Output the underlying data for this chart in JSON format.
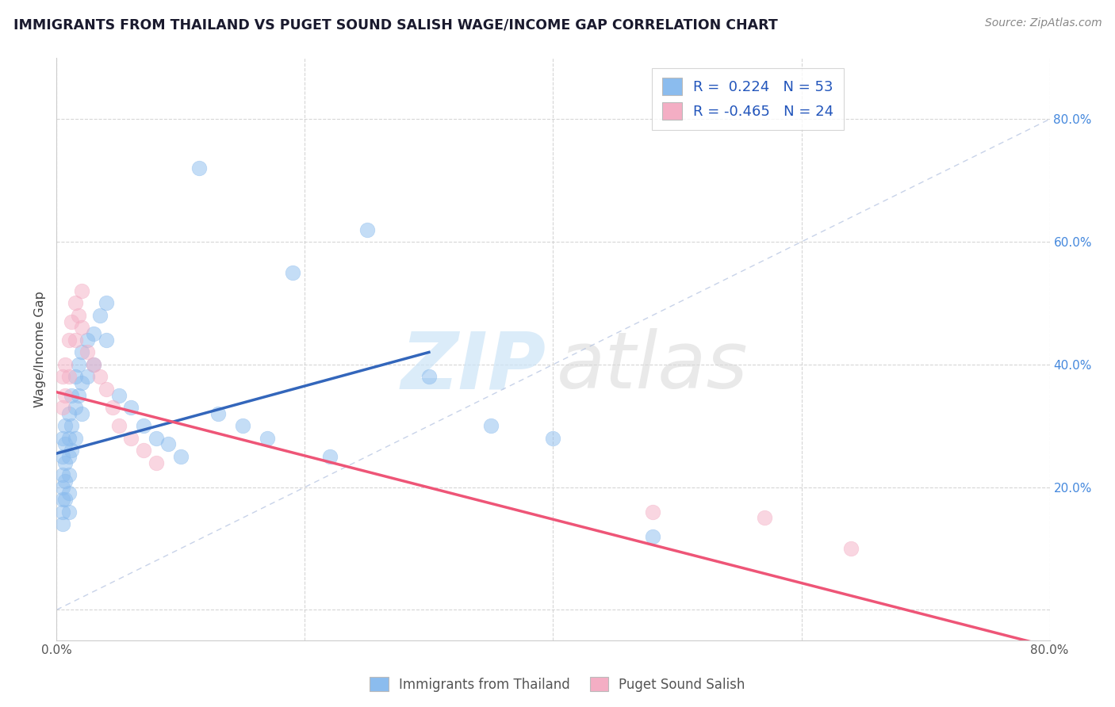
{
  "title": "IMMIGRANTS FROM THAILAND VS PUGET SOUND SALISH WAGE/INCOME GAP CORRELATION CHART",
  "source": "Source: ZipAtlas.com",
  "ylabel": "Wage/Income Gap",
  "xlim": [
    0.0,
    0.8
  ],
  "ylim": [
    -0.05,
    0.9
  ],
  "x_ticks": [
    0.0,
    0.2,
    0.4,
    0.6,
    0.8
  ],
  "x_tick_labels": [
    "0.0%",
    "",
    "",
    "",
    "80.0%"
  ],
  "y_ticks": [
    0.0,
    0.2,
    0.4,
    0.6,
    0.8
  ],
  "y_tick_labels": [
    "",
    "",
    "",
    "",
    ""
  ],
  "right_y_ticks": [
    0.2,
    0.4,
    0.6,
    0.8
  ],
  "right_y_tick_labels": [
    "20.0%",
    "40.0%",
    "60.0%",
    "80.0%"
  ],
  "legend1_r": "0.224",
  "legend1_n": "53",
  "legend2_r": "-0.465",
  "legend2_n": "24",
  "blue_color": "#8bbcee",
  "pink_color": "#f4aec4",
  "line_blue": "#3366bb",
  "line_pink": "#ee5577",
  "title_color": "#1a1a2e",
  "axis_label_color": "#444444",
  "tick_color": "#555555",
  "legend_text_color": "#2255bb",
  "grid_color": "#cccccc",
  "blue_scatter_x": [
    0.005,
    0.005,
    0.005,
    0.005,
    0.005,
    0.005,
    0.005,
    0.007,
    0.007,
    0.007,
    0.007,
    0.007,
    0.01,
    0.01,
    0.01,
    0.01,
    0.01,
    0.01,
    0.012,
    0.012,
    0.012,
    0.015,
    0.015,
    0.015,
    0.018,
    0.018,
    0.02,
    0.02,
    0.02,
    0.025,
    0.025,
    0.03,
    0.03,
    0.035,
    0.04,
    0.04,
    0.05,
    0.06,
    0.07,
    0.08,
    0.09,
    0.1,
    0.115,
    0.13,
    0.15,
    0.17,
    0.19,
    0.22,
    0.25,
    0.3,
    0.35,
    0.4,
    0.48
  ],
  "blue_scatter_y": [
    0.28,
    0.25,
    0.22,
    0.2,
    0.18,
    0.16,
    0.14,
    0.3,
    0.27,
    0.24,
    0.21,
    0.18,
    0.32,
    0.28,
    0.25,
    0.22,
    0.19,
    0.16,
    0.35,
    0.3,
    0.26,
    0.38,
    0.33,
    0.28,
    0.4,
    0.35,
    0.42,
    0.37,
    0.32,
    0.44,
    0.38,
    0.45,
    0.4,
    0.48,
    0.5,
    0.44,
    0.35,
    0.33,
    0.3,
    0.28,
    0.27,
    0.25,
    0.72,
    0.32,
    0.3,
    0.28,
    0.55,
    0.25,
    0.62,
    0.38,
    0.3,
    0.28,
    0.12
  ],
  "pink_scatter_x": [
    0.005,
    0.005,
    0.007,
    0.007,
    0.01,
    0.01,
    0.012,
    0.015,
    0.015,
    0.018,
    0.02,
    0.02,
    0.025,
    0.03,
    0.035,
    0.04,
    0.045,
    0.05,
    0.06,
    0.07,
    0.08,
    0.48,
    0.57,
    0.64
  ],
  "pink_scatter_y": [
    0.38,
    0.33,
    0.4,
    0.35,
    0.44,
    0.38,
    0.47,
    0.5,
    0.44,
    0.48,
    0.52,
    0.46,
    0.42,
    0.4,
    0.38,
    0.36,
    0.33,
    0.3,
    0.28,
    0.26,
    0.24,
    0.16,
    0.15,
    0.1
  ],
  "blue_line_x0": 0.0,
  "blue_line_x1": 0.3,
  "blue_line_y0": 0.255,
  "blue_line_y1": 0.42,
  "pink_line_x0": 0.0,
  "pink_line_x1": 0.8,
  "pink_line_y0": 0.355,
  "pink_line_y1": -0.06
}
